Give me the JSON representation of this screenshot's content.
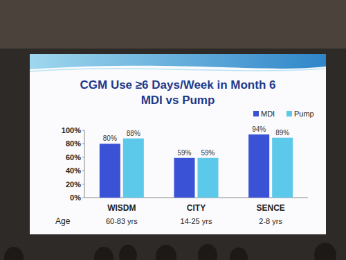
{
  "chart_data": {
    "type": "bar",
    "title": "CGM Use ≥6 Days/Week in Month 6",
    "subtitle": "MDI vs Pump",
    "categories": [
      "WISDM",
      "CITY",
      "SENCE"
    ],
    "series": [
      {
        "name": "MDI",
        "color": "#3a52d6",
        "values": [
          80,
          59,
          94
        ],
        "value_labels": [
          "80%",
          "59%",
          "94%"
        ]
      },
      {
        "name": "Pump",
        "color": "#5cc8ea",
        "values": [
          88,
          59,
          89
        ],
        "value_labels": [
          "88%",
          "59%",
          "89%"
        ]
      }
    ],
    "annotations": {
      "title": "Age",
      "items": [
        "60-83 yrs",
        "14-25 yrs",
        "2-8 yrs"
      ]
    },
    "ylim": [
      0,
      100
    ],
    "yticks": [
      {
        "value": 0,
        "label": "0%"
      },
      {
        "value": 20,
        "label": "20%"
      },
      {
        "value": 40,
        "label": "40%"
      },
      {
        "value": 60,
        "label": "60%"
      },
      {
        "value": 80,
        "label": "80%"
      },
      {
        "value": 100,
        "label": "100%"
      }
    ],
    "grid": false,
    "legend": "top-right",
    "data_labels": true
  }
}
